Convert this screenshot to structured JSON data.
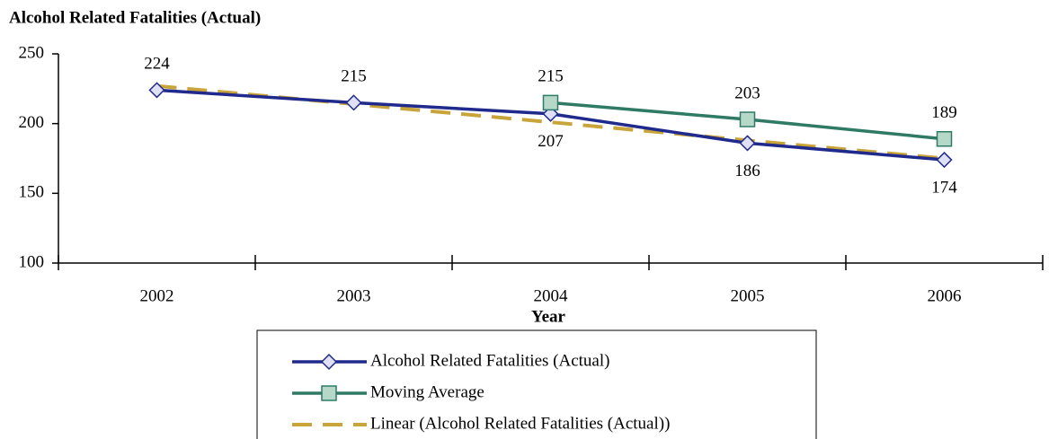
{
  "chart_data": {
    "type": "line",
    "title": "Alcohol Related Fatalities (Actual)",
    "x_label": "Year",
    "categories": [
      "2002",
      "2003",
      "2004",
      "2005",
      "2006"
    ],
    "series": [
      {
        "name": "Alcohol Related Fatalities (Actual)",
        "color": "#1f2a8c",
        "marker": "diamond",
        "marker_fill": "#dfe0f5",
        "style": "solid",
        "data_labels": true,
        "values": [
          224,
          215,
          207,
          186,
          174
        ]
      },
      {
        "name": "Moving Average",
        "color": "#2e7a64",
        "marker": "square",
        "marker_fill": "#b5d8c8",
        "style": "solid",
        "data_labels": true,
        "values": [
          null,
          null,
          215,
          203,
          189
        ]
      },
      {
        "name": "Linear (Alcohol Related Fatalities (Actual))",
        "color": "#c9a43a",
        "marker": "none",
        "style": "dashed",
        "data_labels": false,
        "values": [
          227,
          214,
          201,
          188,
          175
        ]
      }
    ],
    "ylim": [
      100,
      250
    ],
    "yticks": [
      100,
      150,
      200,
      250
    ],
    "grid": false,
    "legend": "bottom"
  }
}
